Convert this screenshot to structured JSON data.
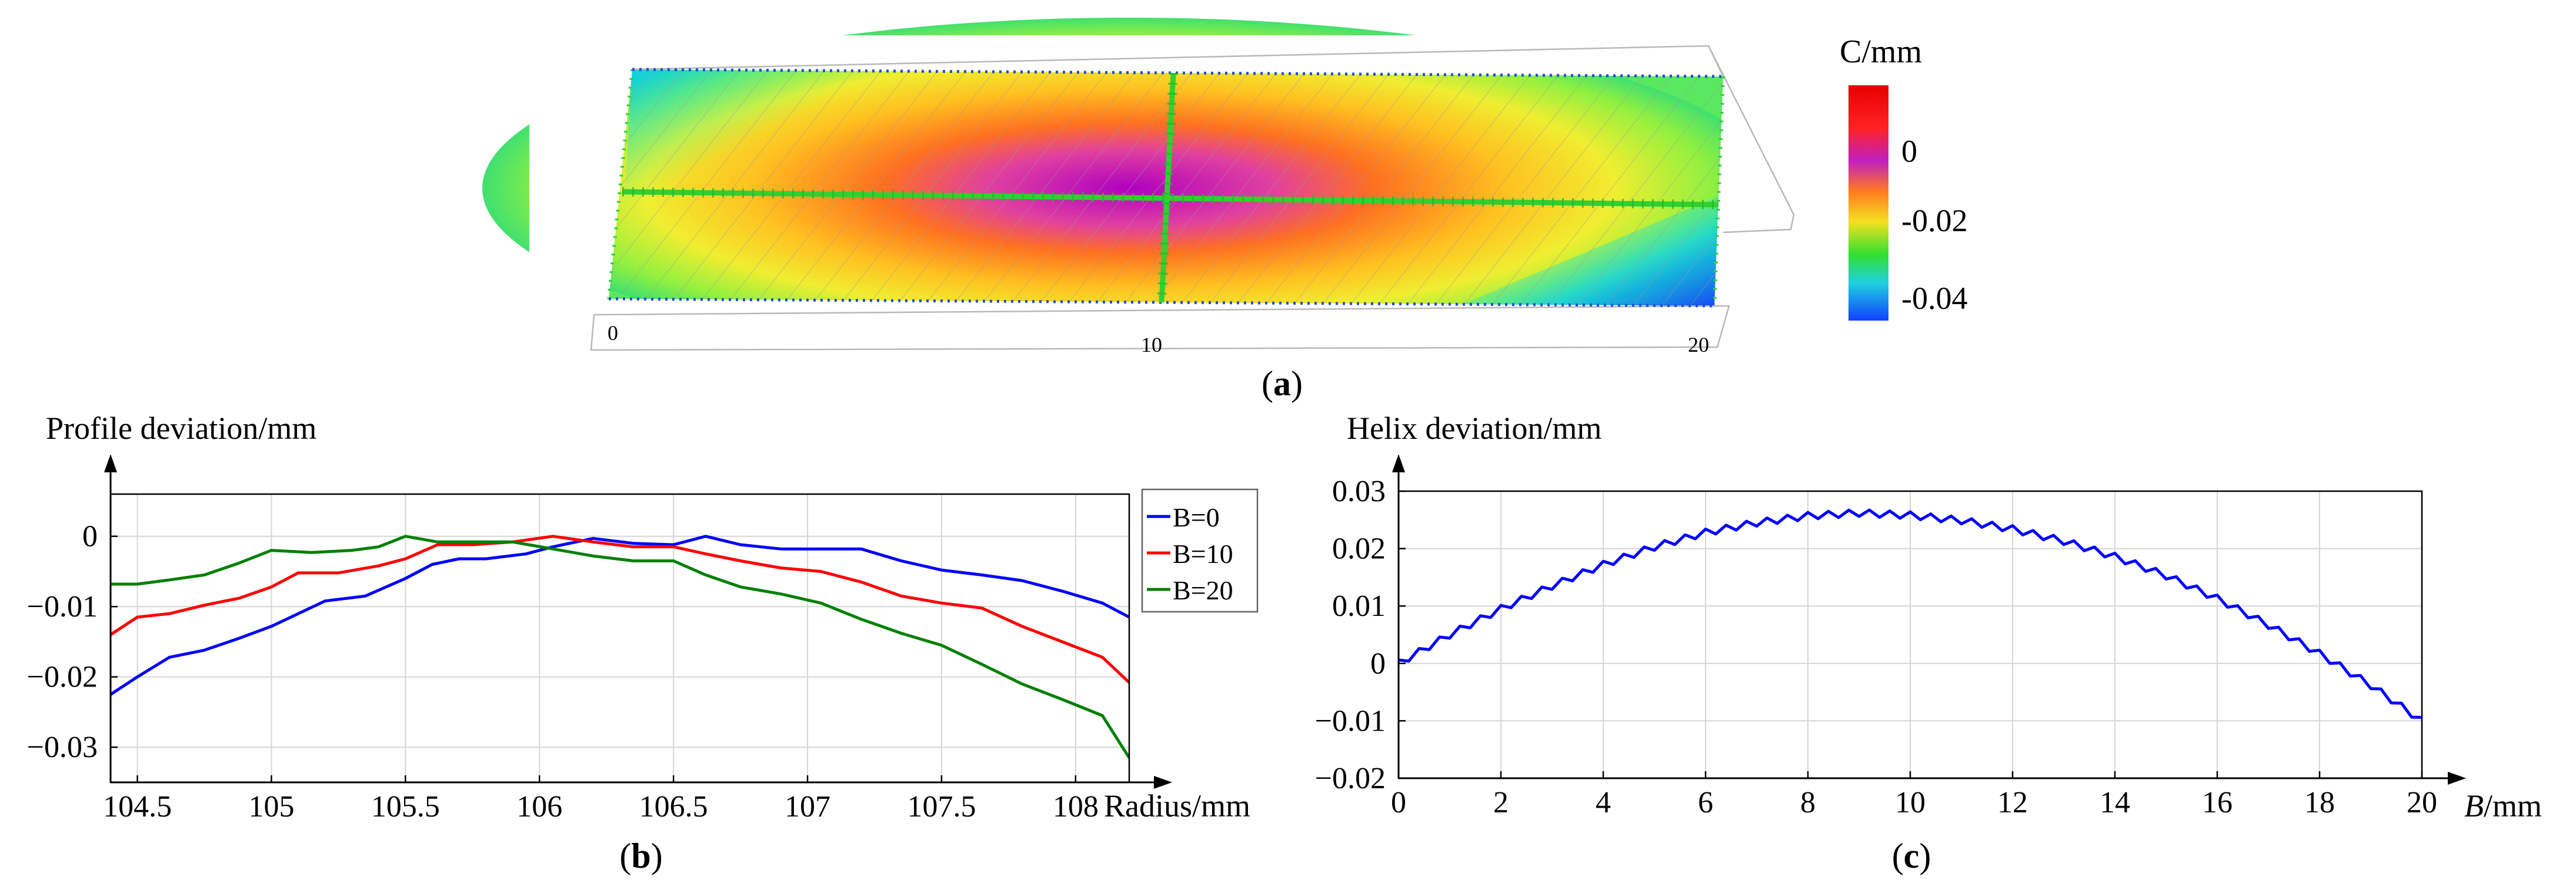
{
  "panel_labels": {
    "a": "(a)",
    "b": "(b)",
    "c": "(c)"
  },
  "panel_a": {
    "colorbar_title": "C/mm",
    "colorbar_ticks": [
      "0",
      "-0.02",
      "-0.04"
    ],
    "axis_ticks": [
      "0",
      "10",
      "20"
    ]
  },
  "chart_data": [
    {
      "type": "line",
      "panel": "b",
      "ylabel": "Profile deviation/mm",
      "xlabel": "Radius/mm",
      "xlim": [
        104.4,
        108.2
      ],
      "ylim": [
        -0.035,
        0.006
      ],
      "xticks": [
        104.5,
        105,
        105.5,
        106,
        106.5,
        107,
        107.5,
        108
      ],
      "xtick_labels": [
        "104.5",
        "105",
        "105.5",
        "106",
        "106.5",
        "107",
        "107.5",
        "108"
      ],
      "yticks": [
        0,
        -0.01,
        -0.02,
        -0.03
      ],
      "ytick_labels": [
        "0",
        "−0.01",
        "−0.02",
        "−0.03"
      ],
      "legend_position": "top-right",
      "series": [
        {
          "name": "B=0",
          "color": "#0000ff",
          "x": [
            104.4,
            104.5,
            104.62,
            104.75,
            104.88,
            105.0,
            105.1,
            105.2,
            105.35,
            105.5,
            105.6,
            105.7,
            105.8,
            105.95,
            106.05,
            106.2,
            106.35,
            106.5,
            106.62,
            106.75,
            106.9,
            107.05,
            107.2,
            107.35,
            107.5,
            107.65,
            107.8,
            107.95,
            108.1,
            108.2
          ],
          "y": [
            -0.0225,
            -0.02,
            -0.0172,
            -0.0162,
            -0.0145,
            -0.0128,
            -0.011,
            -0.0092,
            -0.0085,
            -0.006,
            -0.004,
            -0.0032,
            -0.0032,
            -0.0025,
            -0.0015,
            -0.0003,
            -0.001,
            -0.0012,
            0.0,
            -0.0012,
            -0.0018,
            -0.0018,
            -0.0018,
            -0.0035,
            -0.0048,
            -0.0055,
            -0.0063,
            -0.0078,
            -0.0095,
            -0.0115
          ]
        },
        {
          "name": "B=10",
          "color": "#ff0000",
          "x": [
            104.4,
            104.5,
            104.62,
            104.75,
            104.88,
            105.0,
            105.1,
            105.25,
            105.4,
            105.5,
            105.62,
            105.75,
            105.9,
            106.05,
            106.2,
            106.35,
            106.5,
            106.62,
            106.75,
            106.9,
            107.05,
            107.2,
            107.35,
            107.5,
            107.65,
            107.8,
            107.95,
            108.1,
            108.2
          ],
          "y": [
            -0.014,
            -0.0115,
            -0.011,
            -0.0098,
            -0.0088,
            -0.0072,
            -0.0052,
            -0.0052,
            -0.0042,
            -0.0032,
            -0.0012,
            -0.0012,
            -0.0008,
            0.0,
            -0.0008,
            -0.0015,
            -0.0015,
            -0.0025,
            -0.0035,
            -0.0045,
            -0.005,
            -0.0065,
            -0.0085,
            -0.0095,
            -0.0102,
            -0.0128,
            -0.015,
            -0.0172,
            -0.0208
          ]
        },
        {
          "name": "B=20",
          "color": "#008000",
          "x": [
            104.4,
            104.5,
            104.62,
            104.75,
            104.88,
            105.0,
            105.15,
            105.3,
            105.4,
            105.5,
            105.62,
            105.75,
            105.9,
            106.05,
            106.2,
            106.35,
            106.5,
            106.62,
            106.75,
            106.9,
            107.05,
            107.2,
            107.35,
            107.5,
            107.65,
            107.8,
            107.95,
            108.1,
            108.2
          ],
          "y": [
            -0.0068,
            -0.0068,
            -0.0062,
            -0.0055,
            -0.0038,
            -0.002,
            -0.0023,
            -0.002,
            -0.0015,
            0.0,
            -0.0008,
            -0.0008,
            -0.0008,
            -0.0018,
            -0.0028,
            -0.0035,
            -0.0035,
            -0.0055,
            -0.0072,
            -0.0082,
            -0.0095,
            -0.0118,
            -0.0138,
            -0.0155,
            -0.0182,
            -0.021,
            -0.0232,
            -0.0255,
            -0.0315
          ]
        }
      ]
    },
    {
      "type": "line",
      "panel": "c",
      "ylabel": "Helix deviation/mm",
      "xlabel": "B/mm",
      "xlim": [
        0,
        20
      ],
      "ylim": [
        -0.02,
        0.03
      ],
      "xticks": [
        0,
        2,
        4,
        6,
        8,
        10,
        12,
        14,
        16,
        18,
        20
      ],
      "xtick_labels": [
        "0",
        "2",
        "4",
        "6",
        "8",
        "10",
        "12",
        "14",
        "16",
        "18",
        "20"
      ],
      "yticks": [
        -0.02,
        -0.01,
        0,
        0.01,
        0.02,
        0.03
      ],
      "ytick_labels": [
        "−0.02",
        "−0.01",
        "0",
        "0.01",
        "0.02",
        "0.03"
      ],
      "series": [
        {
          "name": "Helix",
          "color": "#0000ff",
          "x": [
            0,
            1,
            2,
            3,
            4,
            5,
            6,
            7,
            8,
            9,
            10,
            11,
            12,
            13,
            14,
            15,
            16,
            17,
            18,
            19,
            20
          ],
          "y": [
            0.0,
            0.005,
            0.0095,
            0.0135,
            0.0172,
            0.0203,
            0.0228,
            0.0245,
            0.0257,
            0.0262,
            0.0258,
            0.0249,
            0.0234,
            0.0213,
            0.0186,
            0.0153,
            0.0113,
            0.0067,
            0.0017,
            -0.0038,
            -0.01
          ],
          "ripple_amplitude": 0.0012,
          "ripple_count": 50
        }
      ]
    }
  ]
}
